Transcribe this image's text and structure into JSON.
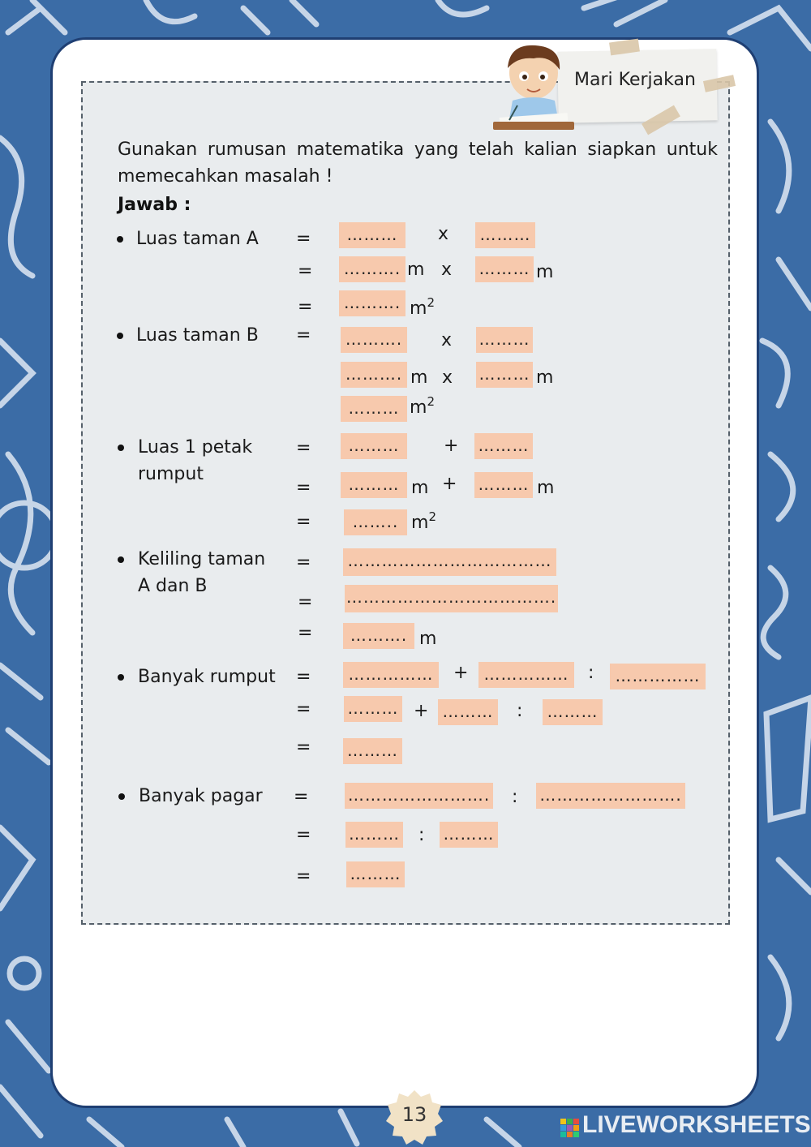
{
  "header": {
    "tag": "Mari Kerjakan"
  },
  "instruction": "Gunakan rumusan matematika yang telah kalian siapkan untuk memecahkan masalah !",
  "answer_label": "Jawab   :",
  "ops": {
    "eq": "=",
    "times": "x",
    "plus": "+",
    "div": ":",
    "m": "m",
    "m2_base": "m",
    "m2_exp": "2"
  },
  "items": {
    "luas_a": "Luas  taman A",
    "luas_b": "Luas  taman B",
    "petak_l1": "Luas   1 petak",
    "petak_l2": "rumput",
    "keliling_l1": "Keliling taman",
    "keliling_l2": "A dan B",
    "rumput": "Banyak rumput",
    "pagar": "Banyak pagar"
  },
  "blanks": {
    "d9": "………",
    "d10": "……….",
    "d8": "……..",
    "d12": "……………",
    "d22": "…………………….",
    "d30": "………………………………",
    "d31": "………………………………."
  },
  "footer": {
    "page": "13",
    "brand": "LIVEWORKSHEETS"
  },
  "colors": {
    "background": "#3b6ca6",
    "answer_box": "#f7c9ad",
    "work_area": "#e9ecee"
  },
  "icons": [
    "boy-writing-icon",
    "liveworksheets-logo-icon"
  ]
}
